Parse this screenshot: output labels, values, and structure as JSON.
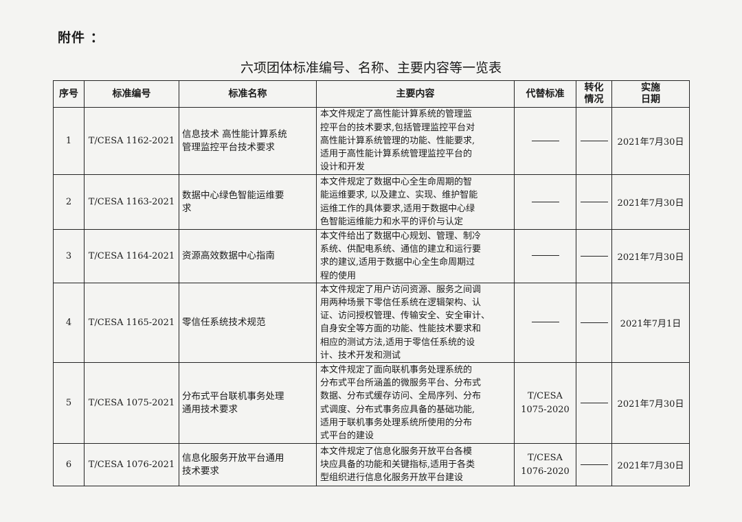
{
  "attachment_label": "附件 ：",
  "title": "六项团体标准编号、名称、主要内容等一览表",
  "headers": {
    "no": "序号",
    "code": "标准编号",
    "name": "标准名称",
    "content": "主要内容",
    "replace": "代替标准",
    "convert": [
      "转化",
      "情况"
    ],
    "date": [
      "实施",
      "日期"
    ]
  },
  "rows": [
    {
      "no": "1",
      "code": "T/CESA 1162-2021",
      "name": [
        "信息技术 高性能计算系统",
        "管理监控平台技术要求"
      ],
      "content": [
        "本文件规定了高性能计算系统的管理监",
        "控平台的技术要求,包括管理监控平台对",
        "高性能计算系统管理的功能、性能要求,",
        "适用于高性能计算系统管理监控平台的",
        "设计和开发"
      ],
      "replace": "",
      "convert": "",
      "date": "2021年7月30日"
    },
    {
      "no": "2",
      "code": "T/CESA 1163-2021",
      "name": [
        "数据中心绿色智能运维要",
        "求"
      ],
      "content": [
        "本文件规定了数据中心全生命周期的智",
        "能运维要求, 以及建立、实现、维护智能",
        "运维工作的具体要求,适用于数据中心绿",
        "色智能运维能力和水平的评价与认定"
      ],
      "replace": "",
      "convert": "",
      "date": "2021年7月30日"
    },
    {
      "no": "3",
      "code": "T/CESA 1164-2021",
      "name": [
        "资源高效数据中心指南"
      ],
      "content": [
        "本文件给出了数据中心规划、管理、制冷",
        "系统、供配电系统、通信的建立和运行要",
        "求的建议,适用于数据中心全生命周期过",
        "程的使用"
      ],
      "replace": "",
      "convert": "",
      "date": "2021年7月30日"
    },
    {
      "no": "4",
      "code": "T/CESA 1165-2021",
      "name": [
        "零信任系统技术规范"
      ],
      "content": [
        "本文件规定了用户访问资源、服务之间调",
        "用两种场景下零信任系统在逻辑架构、认",
        "证、访问授权管理、传输安全、安全审计、",
        "自身安全等方面的功能、性能技术要求和",
        "相应的测试方法,适用于零信任系统的设",
        "计、技术开发和测试"
      ],
      "replace": "",
      "convert": "",
      "date": "2021年7月1日"
    },
    {
      "no": "5",
      "code": "T/CESA 1075-2021",
      "name": [
        "分布式平台联机事务处理",
        "通用技术要求"
      ],
      "content": [
        "本文件规定了面向联机事务处理系统的",
        "分布式平台所涵盖的微服务平台、分布式",
        "数据、分布式缓存访问、全局序列、分布",
        "式调度、分布式事务应具备的基础功能,",
        "适用于联机事务处理系统所使用的分布",
        "式平台的建设"
      ],
      "replace": [
        "T/CESA",
        "1075-2020"
      ],
      "convert": "",
      "date": "2021年7月30日"
    },
    {
      "no": "6",
      "code": "T/CESA 1076-2021",
      "name": [
        "信息化服务开放平台通用",
        "技术要求"
      ],
      "content": [
        "本文件规定了信息化服务开放平台各模",
        "块应具备的功能和关键指标,适用于各类",
        "型组织进行信息化服务开放平台建设"
      ],
      "replace": [
        "T/CESA",
        "1076-2020"
      ],
      "convert": "",
      "date": "2021年7月30日"
    }
  ]
}
